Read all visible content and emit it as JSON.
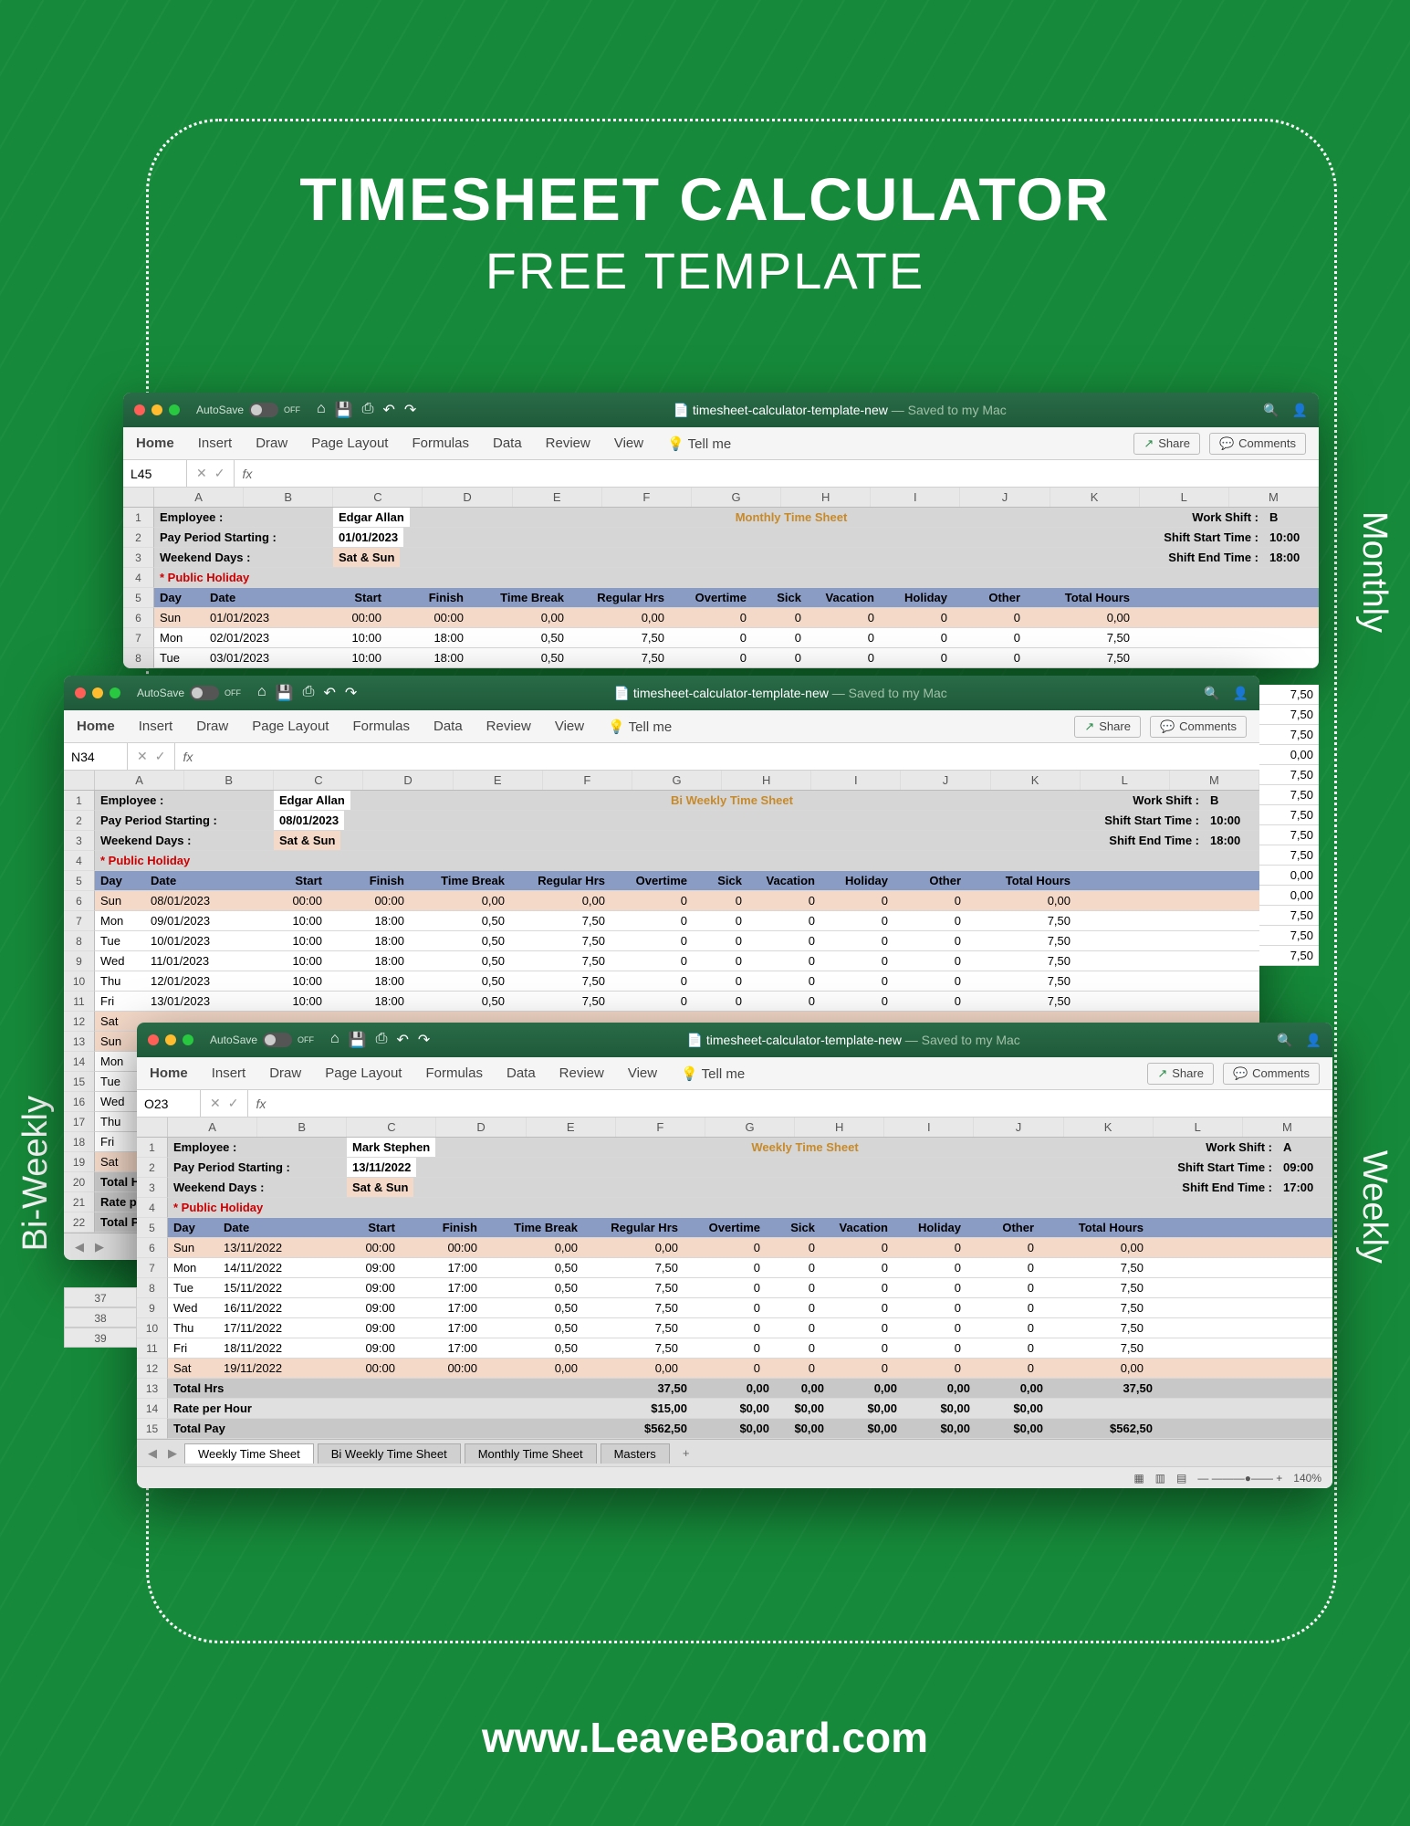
{
  "page": {
    "title_line1": "TIMESHEET CALCULATOR",
    "title_line2": "FREE TEMPLATE",
    "footer": "www.LeaveBoard.com",
    "label_monthly": "Monthly",
    "label_weekly": "Weekly",
    "label_biweekly": "Bi-Weekly"
  },
  "colors": {
    "page_bg": "#168a3a",
    "window_titlebar": "#1e5a3a",
    "header_row": "#8a9bc4",
    "weekend_row": "#f4d9c8",
    "info_row": "#d6d6d6",
    "total_row": "#c8c8c8"
  },
  "common": {
    "autosave_label": "AutoSave",
    "autosave_state": "OFF",
    "filename": "timesheet-calculator-template-new",
    "saved_text": "— Saved to my Mac",
    "ribbon": [
      "Home",
      "Insert",
      "Draw",
      "Page Layout",
      "Formulas",
      "Data",
      "Review",
      "View"
    ],
    "tellme": "Tell me",
    "share": "Share",
    "comments": "Comments",
    "col_letters": [
      "A",
      "B",
      "C",
      "D",
      "E",
      "F",
      "G",
      "H",
      "I",
      "J",
      "K",
      "L",
      "M"
    ],
    "info_labels": {
      "employee": "Employee :",
      "pay_period": "Pay Period Starting :",
      "weekend": "Weekend Days :",
      "public_holiday": "* Public Holiday",
      "work_shift": "Work Shift :",
      "shift_start": "Shift Start Time :",
      "shift_end": "Shift End Time :"
    },
    "col_headers": [
      "Day",
      "Date",
      "Start",
      "Finish",
      "Time Break",
      "Regular Hrs",
      "Overtime",
      "Sick",
      "Vacation",
      "Holiday",
      "Other",
      "Total Hours"
    ],
    "sheet_tabs": [
      "Weekly Time Sheet",
      "Bi Weekly Time Sheet",
      "Monthly Time Sheet",
      "Masters"
    ]
  },
  "monthly": {
    "namebox": "L45",
    "sheet_title": "Monthly Time Sheet",
    "employee": "Edgar Allan",
    "pay_period": "01/01/2023",
    "weekend": "Sat & Sun",
    "work_shift": "B",
    "shift_start": "10:00",
    "shift_end": "18:00",
    "rows": [
      {
        "day": "Sun",
        "date": "01/01/2023",
        "start": "00:00",
        "finish": "00:00",
        "tb": "0,00",
        "reg": "0,00",
        "ot": "0",
        "sick": "0",
        "vac": "0",
        "hol": "0",
        "oth": "0",
        "tot": "0,00",
        "sun": true
      },
      {
        "day": "Mon",
        "date": "02/01/2023",
        "start": "10:00",
        "finish": "18:00",
        "tb": "0,50",
        "reg": "7,50",
        "ot": "0",
        "sick": "0",
        "vac": "0",
        "hol": "0",
        "oth": "0",
        "tot": "7,50"
      },
      {
        "day": "Tue",
        "date": "03/01/2023",
        "start": "10:00",
        "finish": "18:00",
        "tb": "0,50",
        "reg": "7,50",
        "ot": "0",
        "sick": "0",
        "vac": "0",
        "hol": "0",
        "oth": "0",
        "tot": "7,50"
      }
    ],
    "peek_totals": [
      "7,50",
      "7,50",
      "7,50",
      "0,00",
      "7,50",
      "7,50",
      "7,50",
      "7,50",
      "7,50",
      "0,00",
      "0,00",
      "7,50",
      "7,50",
      "7,50"
    ]
  },
  "biweekly": {
    "namebox": "N34",
    "sheet_title": "Bi Weekly Time Sheet",
    "employee": "Edgar Allan",
    "pay_period": "08/01/2023",
    "weekend": "Sat & Sun",
    "work_shift": "B",
    "shift_start": "10:00",
    "shift_end": "18:00",
    "rows": [
      {
        "day": "Sun",
        "date": "08/01/2023",
        "start": "00:00",
        "finish": "00:00",
        "tb": "0,00",
        "reg": "0,00",
        "ot": "0",
        "sick": "0",
        "vac": "0",
        "hol": "0",
        "oth": "0",
        "tot": "0,00",
        "sun": true
      },
      {
        "day": "Mon",
        "date": "09/01/2023",
        "start": "10:00",
        "finish": "18:00",
        "tb": "0,50",
        "reg": "7,50",
        "ot": "0",
        "sick": "0",
        "vac": "0",
        "hol": "0",
        "oth": "0",
        "tot": "7,50"
      },
      {
        "day": "Tue",
        "date": "10/01/2023",
        "start": "10:00",
        "finish": "18:00",
        "tb": "0,50",
        "reg": "7,50",
        "ot": "0",
        "sick": "0",
        "vac": "0",
        "hol": "0",
        "oth": "0",
        "tot": "7,50"
      },
      {
        "day": "Wed",
        "date": "11/01/2023",
        "start": "10:00",
        "finish": "18:00",
        "tb": "0,50",
        "reg": "7,50",
        "ot": "0",
        "sick": "0",
        "vac": "0",
        "hol": "0",
        "oth": "0",
        "tot": "7,50"
      },
      {
        "day": "Thu",
        "date": "12/01/2023",
        "start": "10:00",
        "finish": "18:00",
        "tb": "0,50",
        "reg": "7,50",
        "ot": "0",
        "sick": "0",
        "vac": "0",
        "hol": "0",
        "oth": "0",
        "tot": "7,50"
      },
      {
        "day": "Fri",
        "date": "13/01/2023",
        "start": "10:00",
        "finish": "18:00",
        "tb": "0,50",
        "reg": "7,50",
        "ot": "0",
        "sick": "0",
        "vac": "0",
        "hol": "0",
        "oth": "0",
        "tot": "7,50"
      }
    ],
    "extra_days": [
      "Sat",
      "Sun",
      "Mon",
      "Tue",
      "Wed",
      "Thu",
      "Fri",
      "Sat"
    ],
    "footer_labels": [
      "Total  H",
      "Rate pe",
      "Total Pa"
    ]
  },
  "weekly": {
    "namebox": "O23",
    "sheet_title": "Weekly Time Sheet",
    "employee": "Mark Stephen",
    "pay_period": "13/11/2022",
    "weekend": "Sat & Sun",
    "work_shift": "A",
    "shift_start": "09:00",
    "shift_end": "17:00",
    "rows": [
      {
        "day": "Sun",
        "date": "13/11/2022",
        "start": "00:00",
        "finish": "00:00",
        "tb": "0,00",
        "reg": "0,00",
        "ot": "0",
        "sick": "0",
        "vac": "0",
        "hol": "0",
        "oth": "0",
        "tot": "0,00",
        "sun": true
      },
      {
        "day": "Mon",
        "date": "14/11/2022",
        "start": "09:00",
        "finish": "17:00",
        "tb": "0,50",
        "reg": "7,50",
        "ot": "0",
        "sick": "0",
        "vac": "0",
        "hol": "0",
        "oth": "0",
        "tot": "7,50"
      },
      {
        "day": "Tue",
        "date": "15/11/2022",
        "start": "09:00",
        "finish": "17:00",
        "tb": "0,50",
        "reg": "7,50",
        "ot": "0",
        "sick": "0",
        "vac": "0",
        "hol": "0",
        "oth": "0",
        "tot": "7,50"
      },
      {
        "day": "Wed",
        "date": "16/11/2022",
        "start": "09:00",
        "finish": "17:00",
        "tb": "0,50",
        "reg": "7,50",
        "ot": "0",
        "sick": "0",
        "vac": "0",
        "hol": "0",
        "oth": "0",
        "tot": "7,50"
      },
      {
        "day": "Thu",
        "date": "17/11/2022",
        "start": "09:00",
        "finish": "17:00",
        "tb": "0,50",
        "reg": "7,50",
        "ot": "0",
        "sick": "0",
        "vac": "0",
        "hol": "0",
        "oth": "0",
        "tot": "7,50"
      },
      {
        "day": "Fri",
        "date": "18/11/2022",
        "start": "09:00",
        "finish": "17:00",
        "tb": "0,50",
        "reg": "7,50",
        "ot": "0",
        "sick": "0",
        "vac": "0",
        "hol": "0",
        "oth": "0",
        "tot": "7,50"
      },
      {
        "day": "Sat",
        "date": "19/11/2022",
        "start": "00:00",
        "finish": "00:00",
        "tb": "0,00",
        "reg": "0,00",
        "ot": "0",
        "sick": "0",
        "vac": "0",
        "hol": "0",
        "oth": "0",
        "tot": "0,00",
        "sun": true
      }
    ],
    "totals": {
      "label": "Total  Hrs",
      "reg": "37,50",
      "ot": "0,00",
      "sick": "0,00",
      "vac": "0,00",
      "hol": "0,00",
      "oth": "0,00",
      "tot": "37,50"
    },
    "rate": {
      "label": "Rate per Hour",
      "reg": "$15,00",
      "ot": "$0,00",
      "sick": "$0,00",
      "vac": "$0,00",
      "hol": "$0,00",
      "oth": "$0,00"
    },
    "pay": {
      "label": "Total Pay",
      "reg": "$562,50",
      "ot": "$0,00",
      "sick": "$0,00",
      "vac": "$0,00",
      "hol": "$0,00",
      "oth": "$0,00",
      "tot": "$562,50"
    },
    "zoom": "140%",
    "side_row_nums": [
      "37",
      "38",
      "39"
    ]
  }
}
